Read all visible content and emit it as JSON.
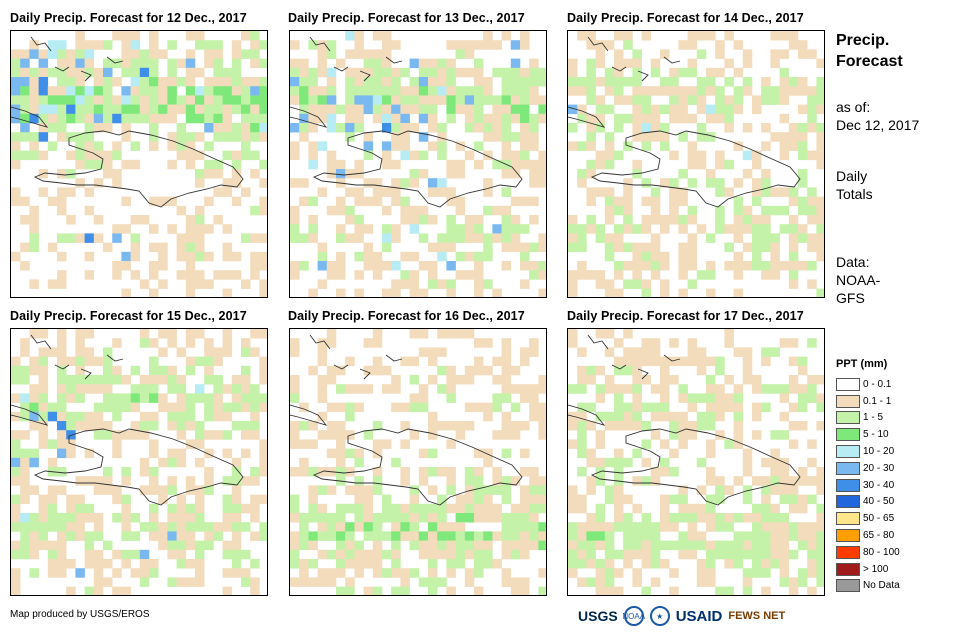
{
  "panels": [
    {
      "title": "Daily Precip. Forecast for 12 Dec., 2017"
    },
    {
      "title": "Daily Precip. Forecast for 13 Dec., 2017"
    },
    {
      "title": "Daily Precip. Forecast for 14 Dec., 2017"
    },
    {
      "title": "Daily Precip. Forecast for 15 Dec., 2017"
    },
    {
      "title": "Daily Precip. Forecast for 16 Dec., 2017"
    },
    {
      "title": "Daily Precip. Forecast for 17 Dec., 2017"
    }
  ],
  "side": {
    "title_line1": "Precip.",
    "title_line2": "Forecast",
    "asof_line1": "as of:",
    "asof_line2": "Dec 12, 2017",
    "totals_line1": "Daily",
    "totals_line2": "Totals",
    "data_line1": "Data:",
    "data_line2": "NOAA-",
    "data_line3": "GFS"
  },
  "legend": {
    "title": "PPT (mm)",
    "items": [
      {
        "label": "0 - 0.1",
        "color": "#ffffff"
      },
      {
        "label": "0.1 - 1",
        "color": "#f2dcbb"
      },
      {
        "label": "1 - 5",
        "color": "#c3f2a8"
      },
      {
        "label": "5 - 10",
        "color": "#7fe87a"
      },
      {
        "label": "10 - 20",
        "color": "#b7ecf5"
      },
      {
        "label": "20 - 30",
        "color": "#7ab9f0"
      },
      {
        "label": "30 - 40",
        "color": "#3f8ee8"
      },
      {
        "label": "40 - 50",
        "color": "#2266dd"
      },
      {
        "label": "50 - 65",
        "color": "#ffe68c"
      },
      {
        "label": "65 - 80",
        "color": "#ffa000"
      },
      {
        "label": "80 - 100",
        "color": "#ff3c00"
      },
      {
        "label": "> 100",
        "color": "#a01c1c"
      },
      {
        "label": "No Data",
        "color": "#999999"
      }
    ]
  },
  "credit": "Map produced by USGS/EROS",
  "logos": {
    "usgs": "USGS",
    "noaa": "NOAA",
    "usaid": "USAID",
    "fews": "FEWS NET"
  }
}
